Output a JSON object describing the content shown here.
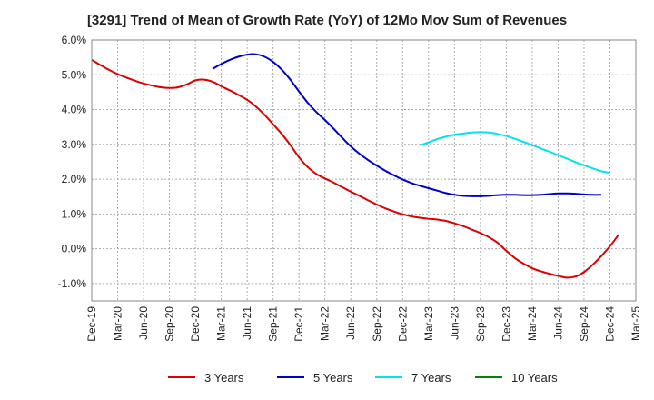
{
  "chart_data": {
    "type": "line",
    "title": "[3291]  Trend of Mean of Growth Rate (YoY) of 12Mo Mov Sum of Revenues",
    "xlabel": "",
    "ylabel": "",
    "ylim": [
      -1.5,
      6.0
    ],
    "yticks": [
      -1.0,
      0.0,
      1.0,
      2.0,
      3.0,
      4.0,
      5.0,
      6.0
    ],
    "ytick_labels": [
      "-1.0%",
      "0.0%",
      "1.0%",
      "2.0%",
      "3.0%",
      "4.0%",
      "5.0%",
      "6.0%"
    ],
    "x_periods": [
      "Dec-19",
      "Jan-20",
      "Feb-20",
      "Mar-20",
      "Apr-20",
      "May-20",
      "Jun-20",
      "Jul-20",
      "Aug-20",
      "Sep-20",
      "Oct-20",
      "Nov-20",
      "Dec-20",
      "Jan-21",
      "Feb-21",
      "Mar-21",
      "Apr-21",
      "May-21",
      "Jun-21",
      "Jul-21",
      "Aug-21",
      "Sep-21",
      "Oct-21",
      "Nov-21",
      "Dec-21",
      "Jan-22",
      "Feb-22",
      "Mar-22",
      "Apr-22",
      "May-22",
      "Jun-22",
      "Jul-22",
      "Aug-22",
      "Sep-22",
      "Oct-22",
      "Nov-22",
      "Dec-22",
      "Jan-23",
      "Feb-23",
      "Mar-23",
      "Apr-23",
      "May-23",
      "Jun-23",
      "Jul-23",
      "Aug-23",
      "Sep-23",
      "Oct-23",
      "Nov-23",
      "Dec-23",
      "Jan-24",
      "Feb-24",
      "Mar-24",
      "Apr-24",
      "May-24",
      "Jun-24",
      "Jul-24",
      "Aug-24",
      "Sep-24",
      "Oct-24",
      "Nov-24",
      "Dec-24",
      "Jan-25",
      "Feb-25",
      "Mar-25"
    ],
    "xtick_labels": [
      "Dec-19",
      "Mar-20",
      "Jun-20",
      "Sep-20",
      "Dec-20",
      "Mar-21",
      "Jun-21",
      "Sep-21",
      "Dec-21",
      "Mar-22",
      "Jun-22",
      "Sep-22",
      "Dec-22",
      "Mar-23",
      "Jun-23",
      "Sep-23",
      "Dec-23",
      "Mar-24",
      "Jun-24",
      "Sep-24",
      "Dec-24",
      "Mar-25"
    ],
    "grid": true,
    "legend_position": "bottom",
    "series": [
      {
        "name": "3 Years",
        "color": "#dd0000",
        "start": "Dec-19",
        "values": [
          5.43,
          5.28,
          5.14,
          5.02,
          4.92,
          4.83,
          4.75,
          4.69,
          4.64,
          4.62,
          4.64,
          4.72,
          4.84,
          4.86,
          4.8,
          4.67,
          4.55,
          4.42,
          4.28,
          4.09,
          3.85,
          3.58,
          3.3,
          2.98,
          2.63,
          2.35,
          2.15,
          2.02,
          1.9,
          1.77,
          1.64,
          1.52,
          1.39,
          1.27,
          1.16,
          1.07,
          0.99,
          0.93,
          0.89,
          0.86,
          0.84,
          0.8,
          0.73,
          0.65,
          0.55,
          0.45,
          0.33,
          0.17,
          -0.06,
          -0.27,
          -0.43,
          -0.56,
          -0.65,
          -0.72,
          -0.78,
          -0.83,
          -0.8,
          -0.67,
          -0.46,
          -0.21,
          0.07,
          0.4
        ]
      },
      {
        "name": "5 Years",
        "color": "#0000cc",
        "start": "Feb-21",
        "values": [
          5.17,
          5.31,
          5.43,
          5.52,
          5.58,
          5.59,
          5.52,
          5.37,
          5.15,
          4.86,
          4.52,
          4.2,
          3.93,
          3.7,
          3.45,
          3.19,
          2.94,
          2.73,
          2.55,
          2.39,
          2.24,
          2.11,
          1.99,
          1.89,
          1.81,
          1.74,
          1.67,
          1.6,
          1.55,
          1.52,
          1.51,
          1.51,
          1.52,
          1.54,
          1.55,
          1.55,
          1.54,
          1.54,
          1.55,
          1.57,
          1.59,
          1.59,
          1.58,
          1.56,
          1.55,
          1.55
        ]
      },
      {
        "name": "7 Years",
        "color": "#00e5e5",
        "start": "Feb-23",
        "values": [
          2.97,
          3.06,
          3.15,
          3.22,
          3.28,
          3.31,
          3.34,
          3.35,
          3.34,
          3.3,
          3.24,
          3.16,
          3.07,
          2.98,
          2.88,
          2.79,
          2.69,
          2.59,
          2.49,
          2.4,
          2.31,
          2.23,
          2.18
        ]
      },
      {
        "name": "10 Years",
        "color": "#008800",
        "start": "",
        "values": []
      }
    ]
  }
}
